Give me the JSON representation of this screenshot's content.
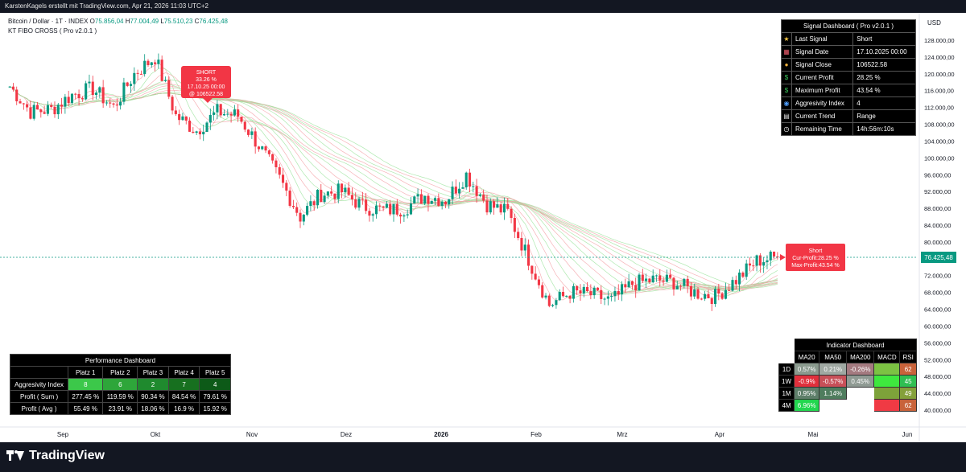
{
  "header": {
    "text": "KarstenKagels erstellt mit TradingView.com, Apr 21, 2026 11:03 UTC+2"
  },
  "legend": {
    "symbol": "Bitcoin / Dollar · 1T · INDEX",
    "o_label": "O",
    "o": "75.856,04",
    "h_label": "H",
    "h": "77.004,49",
    "l_label": "L",
    "l": "75.510,23",
    "c_label": "C",
    "c": "76.425,48",
    "indicator": "KT FIBO CROSS ( Pro v2.0.1 )"
  },
  "price_axis": {
    "currency": "USD",
    "ticks": [
      "128.000,00",
      "124.000,00",
      "120.000,00",
      "116.000,00",
      "112.000,00",
      "108.000,00",
      "104.000,00",
      "100.000,00",
      "96.000,00",
      "92.000,00",
      "88.000,00",
      "84.000,00",
      "80.000,00",
      "76.000,00",
      "72.000,00",
      "68.000,00",
      "64.000,00",
      "60.000,00",
      "56.000,00",
      "52.000,00",
      "48.000,00",
      "44.000,00",
      "40.000,00"
    ],
    "last_price": "76.425,48"
  },
  "time_axis": {
    "ticks": [
      "Sep",
      "Okt",
      "Nov",
      "Dez",
      "2026",
      "Feb",
      "Mrz",
      "Apr",
      "Mai",
      "Jun"
    ]
  },
  "annotations": {
    "signal": {
      "l1": "SHORT",
      "l2": "33.26 %",
      "l3": "17.10.25 00:00",
      "l4": "@ 106522.58"
    },
    "current": {
      "l1": "Short",
      "l2": "Cur-Profit:28.25 %",
      "l3": "Max-Profit:43.54 %"
    }
  },
  "signal_dashboard": {
    "title": "Signal Dashboard ( Pro v2.0.1 )",
    "rows": [
      {
        "icon": "star-icon",
        "label": "Last Signal",
        "value": "Short"
      },
      {
        "icon": "calendar-icon",
        "label": "Signal Date",
        "value": "17.10.2025 00:00"
      },
      {
        "icon": "money-bag-icon",
        "label": "Signal Close",
        "value": "106522.58"
      },
      {
        "icon": "dollar-icon",
        "label": "Current Profit",
        "value": "28.25 %"
      },
      {
        "icon": "dollar-icon",
        "label": "Maximum Profit",
        "value": "43.54 %"
      },
      {
        "icon": "target-icon",
        "label": "Aggresivity Index",
        "value": "4"
      },
      {
        "icon": "trend-icon",
        "label": "Current Trend",
        "value": "Range"
      },
      {
        "icon": "clock-icon",
        "label": "Remaining Time",
        "value": "14h:56m:10s"
      }
    ]
  },
  "performance_dashboard": {
    "title": "Performance Dashboard",
    "columns": [
      "Platz 1",
      "Platz 2",
      "Platz 3",
      "Platz 4",
      "Platz 5"
    ],
    "rows": [
      {
        "label": "Aggresivity Index",
        "values": [
          "8",
          "6",
          "2",
          "7",
          "4"
        ]
      },
      {
        "label": "Profit ( Sum )",
        "values": [
          "277.45 %",
          "119.59 %",
          "90.34 %",
          "84.54 %",
          "79.61 %"
        ]
      },
      {
        "label": "Profit ( Avg )",
        "values": [
          "55.49 %",
          "23.91 %",
          "18.06 %",
          "16.9 %",
          "15.92 %"
        ]
      }
    ],
    "colors": {
      "aggr": [
        "#3cc84a",
        "#2ea63a",
        "#1f8a2e",
        "#17701f",
        "#0d5a18"
      ]
    }
  },
  "indicator_dashboard": {
    "title": "Indicator Dashboard",
    "columns": [
      "MA20",
      "MA50",
      "MA200",
      "MACD",
      "RSI"
    ],
    "rows": [
      {
        "label": "1D",
        "cells": [
          {
            "v": "0.57%",
            "c": "#8a9a8e"
          },
          {
            "v": "0.21%",
            "c": "#9fa8a2"
          },
          {
            "v": "-0.26%",
            "c": "#a47a80"
          },
          {
            "v": "",
            "c": "#7cc243"
          },
          {
            "v": "62",
            "c": "#c8623a"
          }
        ]
      },
      {
        "label": "1W",
        "cells": [
          {
            "v": "-0.9%",
            "c": "#e0303c"
          },
          {
            "v": "-0.57%",
            "c": "#c84f58"
          },
          {
            "v": "0.45%",
            "c": "#8f9a93"
          },
          {
            "v": "",
            "c": "#3ee83e"
          },
          {
            "v": "45",
            "c": "#2fbf52"
          }
        ]
      },
      {
        "label": "1M",
        "cells": [
          {
            "v": "0.95%",
            "c": "#5e7f6a"
          },
          {
            "v": "1.14%",
            "c": "#4f7d5e"
          },
          {
            "v": "",
            "c": "#ffffff"
          },
          {
            "v": "",
            "c": "#7da23a"
          },
          {
            "v": "49",
            "c": "#84a03a"
          }
        ]
      },
      {
        "label": "4M",
        "cells": [
          {
            "v": "6.96%",
            "c": "#22d74f"
          },
          {
            "v": "",
            "c": "#ffffff"
          },
          {
            "v": "",
            "c": "#ffffff"
          },
          {
            "v": "",
            "c": "#f03a44"
          },
          {
            "v": "62",
            "c": "#c8623a"
          }
        ]
      }
    ]
  },
  "colors": {
    "up": "#089981",
    "down": "#f23645",
    "ribbon_up": "#9be49c",
    "ribbon_down": "#f4a0a6",
    "label_red": "#f23645"
  },
  "chart_data": {
    "type": "candlestick",
    "series": [
      {
        "x": [
          "Aug 20",
          "Aug 27",
          "Sep 03",
          "Sep 10",
          "Sep 17",
          "Sep 24",
          "Oct 01",
          "Oct 06",
          "Oct 10",
          "Oct 17",
          "Oct 24",
          "Oct 31",
          "Nov 07",
          "Nov 14",
          "Nov 21",
          "Nov 28",
          "Dec 05",
          "Dec 12",
          "Dec 19",
          "Dec 26",
          "Jan 02",
          "Jan 09",
          "Jan 14",
          "Jan 20",
          "Jan 27",
          "Feb 03",
          "Feb 06",
          "Feb 13",
          "Feb 20",
          "Feb 27",
          "Mar 06",
          "Mar 13",
          "Mar 20",
          "Mar 27",
          "Apr 03",
          "Apr 10",
          "Apr 17",
          "Apr 21"
        ],
        "close": [
          117000,
          111000,
          111500,
          115000,
          116500,
          112000,
          120000,
          124000,
          110000,
          106500,
          111000,
          110000,
          103000,
          95000,
          86000,
          91500,
          92000,
          88500,
          87500,
          88000,
          91000,
          90000,
          96000,
          89000,
          87000,
          76000,
          65000,
          68000,
          67500,
          66000,
          70000,
          71000,
          70500,
          68000,
          67000,
          71000,
          75500,
          76425
        ]
      }
    ],
    "price_range": [
      37000,
      130000
    ],
    "signal": {
      "type": "SHORT",
      "date": "17.10.25",
      "price": 106522.58
    },
    "last_price": 76425.48
  }
}
